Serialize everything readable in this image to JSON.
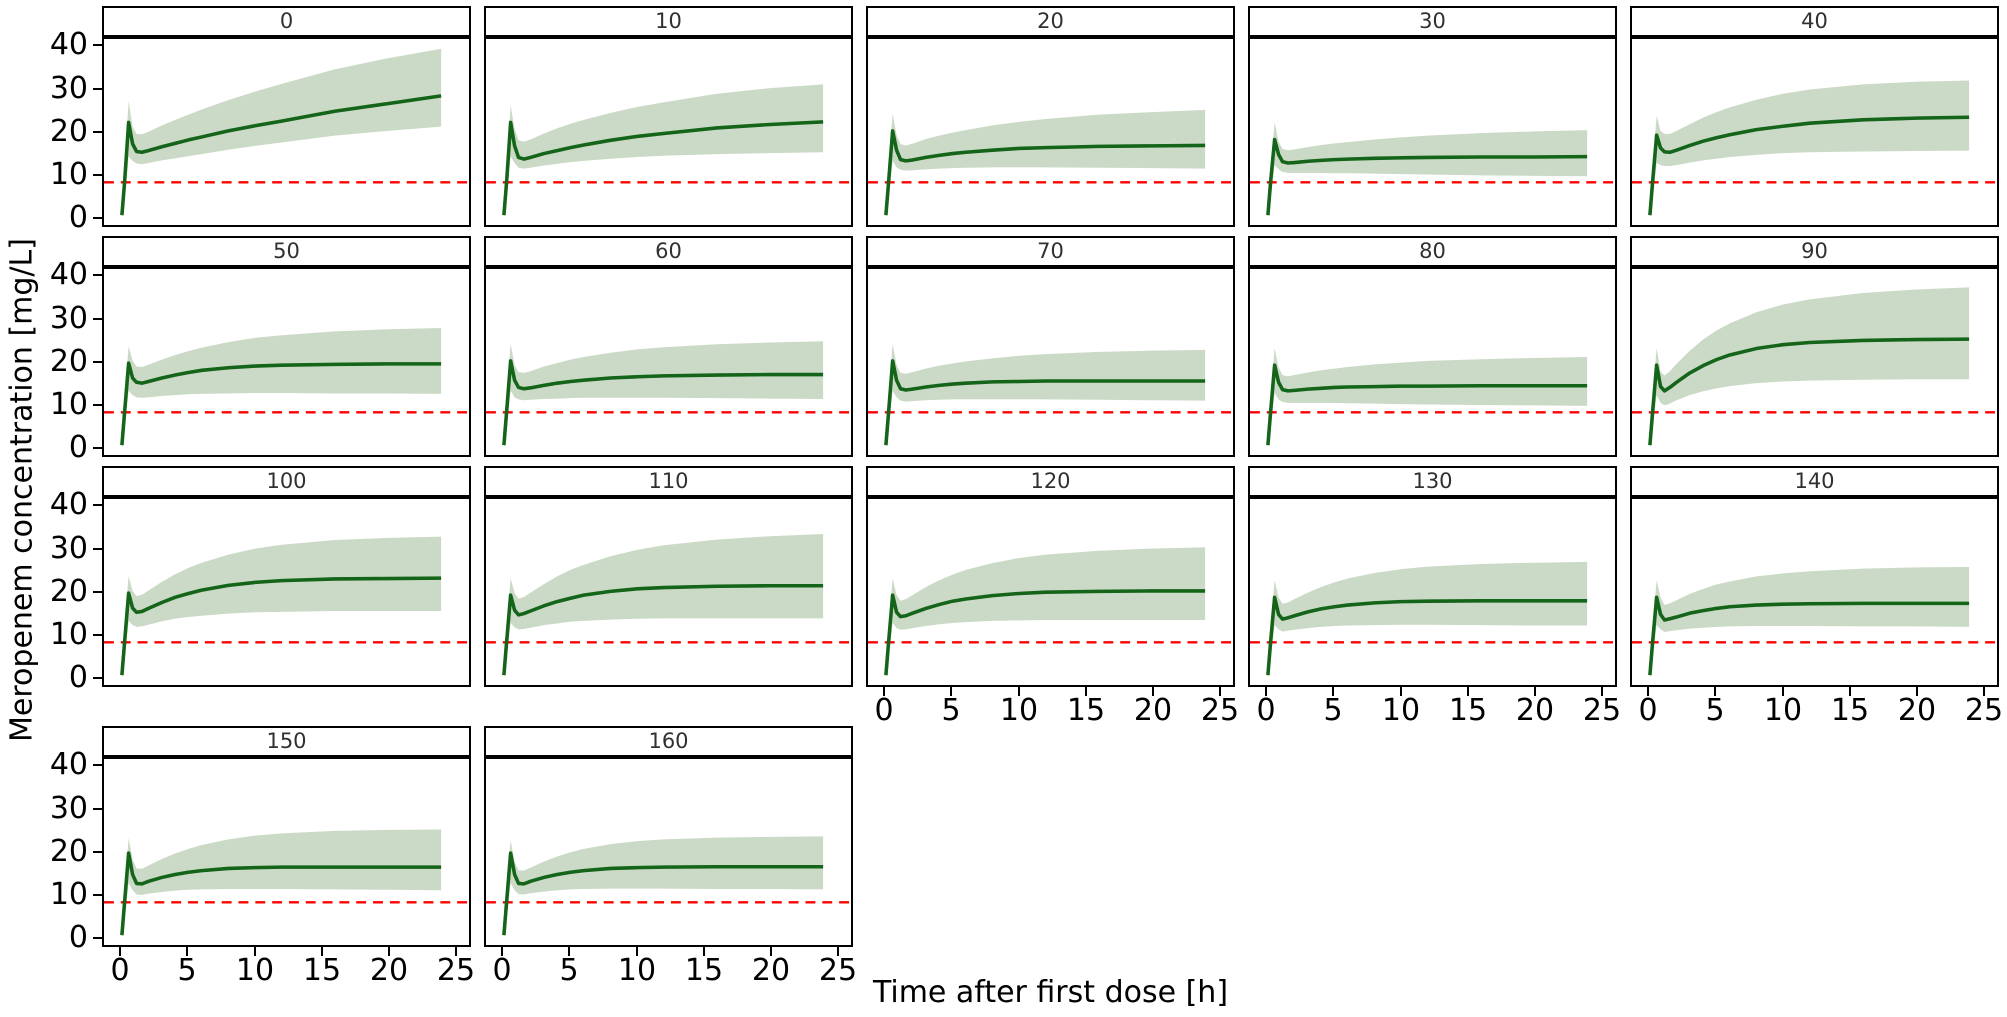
{
  "xaxis": {
    "title": "Time after first dose [h]",
    "ticks": [
      0,
      5,
      10,
      15,
      20,
      25
    ],
    "range": [
      -1.35,
      26.1
    ]
  },
  "yaxis": {
    "title": "Meropenem concentration [mg/L]",
    "ticks": [
      40,
      30,
      20,
      10,
      0
    ],
    "range": [
      -2,
      41.5
    ]
  },
  "reference_line": {
    "y": 8,
    "color": "#FF0000",
    "style": "dashed"
  },
  "colors": {
    "median_line": "#146419",
    "ribbon": "#cbdac6",
    "panel_border": "#000000",
    "strip_bg": "#ffffff",
    "strip_text": "#303030",
    "axis_text": "#000000"
  },
  "chart_data": {
    "type": "line",
    "ribbon": true,
    "facet_layout": {
      "columns": 5,
      "rows": 4
    },
    "title": "",
    "xlabel": "Time after first dose [h]",
    "ylabel": "Meropenem concentration [mg/L]",
    "xlim": [
      0,
      25
    ],
    "ylim": [
      0,
      40
    ],
    "t": [
      0,
      0.2,
      0.5,
      0.8,
      1.1,
      1.5,
      2,
      3,
      4,
      5,
      6,
      8,
      10,
      12,
      16,
      20,
      24
    ],
    "facets": [
      {
        "label": "0",
        "median": [
          0.3,
          8,
          22,
          17,
          15.2,
          15.0,
          15.4,
          16.3,
          17.1,
          17.9,
          18.6,
          20.0,
          21.2,
          22.3,
          24.6,
          26.4,
          28.2
        ],
        "lo": [
          0,
          4,
          14,
          13,
          12.4,
          12.2,
          12.5,
          13.1,
          13.6,
          14.1,
          14.6,
          15.6,
          16.5,
          17.3,
          18.9,
          20.0,
          21.0
        ],
        "hi": [
          0.8,
          12,
          27,
          21,
          19.3,
          19.2,
          19.8,
          21.3,
          22.6,
          23.8,
          25.0,
          27.2,
          29.2,
          31.0,
          34.4,
          37.0,
          39.2
        ]
      },
      {
        "label": "10",
        "median": [
          0.3,
          8,
          22,
          16.5,
          13.8,
          13.4,
          13.8,
          14.7,
          15.4,
          16.1,
          16.7,
          17.8,
          18.7,
          19.4,
          20.7,
          21.5,
          22.1
        ],
        "lo": [
          0,
          4,
          14,
          12.5,
          11.4,
          11.2,
          11.4,
          11.9,
          12.3,
          12.7,
          13.0,
          13.5,
          13.9,
          14.2,
          14.6,
          14.8,
          15.0
        ],
        "hi": [
          0.8,
          12,
          26,
          20.5,
          17.8,
          17.5,
          18.0,
          19.4,
          20.6,
          21.7,
          22.6,
          24.2,
          25.6,
          26.7,
          28.7,
          30.0,
          30.9
        ]
      },
      {
        "label": "20",
        "median": [
          0.3,
          8,
          20,
          15.5,
          13.3,
          13.0,
          13.2,
          13.8,
          14.3,
          14.7,
          15.0,
          15.5,
          15.9,
          16.1,
          16.4,
          16.5,
          16.6
        ],
        "lo": [
          0,
          4,
          13,
          11.5,
          10.9,
          10.7,
          10.8,
          11.0,
          11.2,
          11.3,
          11.4,
          11.5,
          11.5,
          11.5,
          11.4,
          11.3,
          11.2
        ],
        "hi": [
          0.8,
          12,
          24,
          19.0,
          16.9,
          16.6,
          17.0,
          18.1,
          18.9,
          19.6,
          20.2,
          21.3,
          22.1,
          22.8,
          23.8,
          24.4,
          24.9
        ]
      },
      {
        "label": "30",
        "median": [
          0.3,
          8,
          18,
          14.5,
          12.8,
          12.5,
          12.6,
          12.9,
          13.1,
          13.3,
          13.4,
          13.6,
          13.7,
          13.8,
          13.9,
          13.9,
          14.0
        ],
        "lo": [
          0,
          4,
          12,
          11.0,
          10.4,
          10.2,
          10.2,
          10.2,
          10.2,
          10.1,
          10.1,
          10.0,
          9.9,
          9.8,
          9.6,
          9.5,
          9.4
        ],
        "hi": [
          0.8,
          12,
          22,
          17.5,
          15.8,
          15.5,
          15.7,
          16.2,
          16.7,
          17.1,
          17.4,
          18.0,
          18.5,
          18.9,
          19.5,
          19.9,
          20.2
        ]
      },
      {
        "label": "40",
        "median": [
          0.3,
          8,
          19,
          16.0,
          15.1,
          15.0,
          15.5,
          16.6,
          17.6,
          18.4,
          19.1,
          20.3,
          21.1,
          21.8,
          22.6,
          23.0,
          23.2
        ],
        "lo": [
          0,
          4,
          12.5,
          12.0,
          11.8,
          11.8,
          12.0,
          12.6,
          13.1,
          13.5,
          13.9,
          14.4,
          14.8,
          15.0,
          15.2,
          15.3,
          15.4
        ],
        "hi": [
          0.8,
          12,
          23.5,
          20.0,
          19.3,
          19.3,
          20.0,
          21.6,
          23.1,
          24.4,
          25.5,
          27.3,
          28.7,
          29.7,
          30.9,
          31.5,
          31.8
        ]
      },
      {
        "label": "50",
        "median": [
          0.3,
          8,
          19.5,
          16.0,
          15.0,
          14.8,
          15.2,
          16.0,
          16.7,
          17.3,
          17.8,
          18.4,
          18.8,
          19.0,
          19.2,
          19.3,
          19.3
        ],
        "lo": [
          0,
          4,
          13,
          12.0,
          11.5,
          11.4,
          11.5,
          11.8,
          12.0,
          12.2,
          12.3,
          12.4,
          12.5,
          12.5,
          12.4,
          12.4,
          12.3
        ],
        "hi": [
          0.8,
          12,
          23.5,
          20.0,
          18.7,
          18.6,
          19.1,
          20.3,
          21.4,
          22.3,
          23.1,
          24.4,
          25.4,
          26.0,
          26.9,
          27.4,
          27.7
        ]
      },
      {
        "label": "60",
        "median": [
          0.3,
          8,
          20,
          15.5,
          13.8,
          13.5,
          13.7,
          14.3,
          14.8,
          15.2,
          15.5,
          16.0,
          16.3,
          16.5,
          16.7,
          16.8,
          16.8
        ],
        "lo": [
          0,
          4,
          13,
          11.5,
          11.0,
          10.8,
          10.9,
          11.1,
          11.2,
          11.3,
          11.4,
          11.4,
          11.4,
          11.4,
          11.3,
          11.2,
          11.1
        ],
        "hi": [
          0.8,
          12,
          24,
          19.0,
          17.4,
          17.2,
          17.6,
          18.7,
          19.5,
          20.3,
          20.9,
          21.9,
          22.7,
          23.2,
          23.9,
          24.3,
          24.6
        ]
      },
      {
        "label": "70",
        "median": [
          0.3,
          8,
          20,
          15.5,
          13.5,
          13.2,
          13.4,
          13.9,
          14.3,
          14.6,
          14.8,
          15.1,
          15.2,
          15.3,
          15.3,
          15.3,
          15.3
        ],
        "lo": [
          0,
          4,
          13,
          11.5,
          10.7,
          10.5,
          10.6,
          10.8,
          10.9,
          11.0,
          11.0,
          11.0,
          11.0,
          11.0,
          10.9,
          10.8,
          10.7
        ],
        "hi": [
          0.8,
          12,
          24,
          19.0,
          17.2,
          17.0,
          17.4,
          18.2,
          18.9,
          19.4,
          19.9,
          20.6,
          21.2,
          21.6,
          22.1,
          22.4,
          22.6
        ]
      },
      {
        "label": "80",
        "median": [
          0.3,
          8,
          19,
          15.0,
          13.3,
          13.0,
          13.1,
          13.4,
          13.6,
          13.8,
          13.9,
          14.0,
          14.1,
          14.1,
          14.2,
          14.2,
          14.2
        ],
        "lo": [
          0,
          4,
          12.5,
          11.0,
          10.4,
          10.2,
          10.2,
          10.2,
          10.2,
          10.2,
          10.1,
          10.0,
          9.9,
          9.8,
          9.7,
          9.6,
          9.5
        ],
        "hi": [
          0.8,
          12,
          23,
          18.5,
          16.7,
          16.4,
          16.7,
          17.3,
          17.8,
          18.2,
          18.6,
          19.2,
          19.6,
          20.0,
          20.4,
          20.7,
          20.9
        ]
      },
      {
        "label": "90",
        "median": [
          0.3,
          8,
          19,
          14.0,
          13.0,
          13.8,
          15.0,
          17.2,
          18.9,
          20.3,
          21.4,
          22.9,
          23.8,
          24.3,
          24.8,
          25.0,
          25.1
        ],
        "lo": [
          0,
          4,
          12,
          10.2,
          9.6,
          10.0,
          10.8,
          12.0,
          12.9,
          13.6,
          14.1,
          14.8,
          15.2,
          15.4,
          15.6,
          15.7,
          15.7
        ],
        "hi": [
          0.8,
          12,
          23,
          17.5,
          16.6,
          17.6,
          19.3,
          22.4,
          25.0,
          27.1,
          28.8,
          31.4,
          33.2,
          34.4,
          35.9,
          36.7,
          37.2
        ]
      },
      {
        "label": "100",
        "median": [
          0.3,
          8,
          19.5,
          16.0,
          15.0,
          15.2,
          15.9,
          17.3,
          18.5,
          19.4,
          20.2,
          21.3,
          22.0,
          22.4,
          22.8,
          22.9,
          23.0
        ],
        "lo": [
          0,
          4,
          13,
          12.0,
          11.6,
          11.7,
          12.1,
          12.9,
          13.5,
          13.9,
          14.2,
          14.7,
          15.0,
          15.1,
          15.3,
          15.3,
          15.3
        ],
        "hi": [
          0.8,
          12,
          23.5,
          20.0,
          18.8,
          19.1,
          20.1,
          22.1,
          23.9,
          25.4,
          26.6,
          28.5,
          29.9,
          30.8,
          31.9,
          32.4,
          32.7
        ]
      },
      {
        "label": "110",
        "median": [
          0.3,
          8,
          19,
          15.5,
          14.4,
          14.7,
          15.3,
          16.5,
          17.5,
          18.3,
          19.0,
          19.9,
          20.5,
          20.8,
          21.1,
          21.2,
          21.2
        ],
        "lo": [
          0,
          4,
          12.5,
          11.5,
          11.0,
          11.1,
          11.4,
          12.0,
          12.4,
          12.8,
          13.0,
          13.3,
          13.5,
          13.6,
          13.6,
          13.6,
          13.6
        ],
        "hi": [
          0.8,
          12,
          23,
          19.5,
          18.2,
          18.6,
          19.6,
          21.6,
          23.4,
          24.9,
          26.1,
          28.1,
          29.6,
          30.7,
          32.0,
          32.8,
          33.3
        ]
      },
      {
        "label": "120",
        "median": [
          0.3,
          8,
          19,
          15.0,
          14.0,
          14.2,
          14.8,
          15.9,
          16.8,
          17.6,
          18.1,
          18.9,
          19.4,
          19.7,
          19.9,
          20.0,
          20.0
        ],
        "lo": [
          0,
          4,
          12.5,
          11.3,
          10.9,
          11.0,
          11.3,
          11.8,
          12.2,
          12.5,
          12.7,
          13.0,
          13.1,
          13.2,
          13.2,
          13.2,
          13.2
        ],
        "hi": [
          0.8,
          12,
          23,
          19.0,
          17.7,
          18.1,
          19.0,
          20.9,
          22.5,
          23.8,
          24.9,
          26.5,
          27.7,
          28.5,
          29.4,
          29.9,
          30.2
        ]
      },
      {
        "label": "130",
        "median": [
          0.3,
          8,
          18.5,
          14.5,
          13.4,
          13.7,
          14.2,
          15.1,
          15.8,
          16.3,
          16.7,
          17.2,
          17.5,
          17.6,
          17.7,
          17.7,
          17.7
        ],
        "lo": [
          0,
          4,
          12,
          11.0,
          10.5,
          10.7,
          10.9,
          11.3,
          11.6,
          11.8,
          11.9,
          12.0,
          12.1,
          12.1,
          12.0,
          11.9,
          11.9
        ],
        "hi": [
          0.8,
          12,
          22.5,
          18.5,
          17.0,
          17.3,
          18.1,
          19.6,
          20.9,
          22.0,
          22.9,
          24.2,
          25.1,
          25.7,
          26.3,
          26.6,
          26.8
        ]
      },
      {
        "label": "140",
        "median": [
          0.3,
          8,
          18.5,
          14.5,
          13.2,
          13.5,
          13.9,
          14.8,
          15.4,
          15.9,
          16.3,
          16.7,
          16.9,
          17.0,
          17.1,
          17.1,
          17.1
        ],
        "lo": [
          0,
          4,
          12,
          11.0,
          10.4,
          10.6,
          10.8,
          11.2,
          11.4,
          11.6,
          11.7,
          11.8,
          11.8,
          11.8,
          11.7,
          11.7,
          11.6
        ],
        "hi": [
          0.8,
          12,
          22.5,
          18.5,
          16.7,
          17.1,
          17.8,
          19.3,
          20.5,
          21.5,
          22.2,
          23.4,
          24.1,
          24.6,
          25.2,
          25.5,
          25.6
        ]
      },
      {
        "label": "150",
        "median": [
          0.3,
          8,
          19.5,
          14.5,
          12.4,
          12.3,
          12.9,
          13.8,
          14.5,
          15.0,
          15.4,
          15.9,
          16.1,
          16.2,
          16.2,
          16.2,
          16.2
        ],
        "lo": [
          0,
          4,
          12.5,
          10.8,
          9.8,
          9.7,
          10.0,
          10.4,
          10.7,
          10.9,
          11.0,
          11.1,
          11.1,
          11.1,
          11.0,
          10.9,
          10.8
        ],
        "hi": [
          0.8,
          12,
          23,
          18.0,
          15.9,
          15.8,
          16.6,
          18.1,
          19.4,
          20.5,
          21.4,
          22.7,
          23.6,
          24.1,
          24.7,
          24.9,
          25.0
        ]
      },
      {
        "label": "160",
        "median": [
          0.3,
          8,
          19.5,
          14.5,
          12.4,
          12.3,
          12.9,
          13.8,
          14.5,
          15.0,
          15.4,
          15.9,
          16.1,
          16.2,
          16.3,
          16.3,
          16.3
        ],
        "lo": [
          0,
          4,
          12.5,
          10.8,
          9.9,
          9.8,
          10.1,
          10.5,
          10.8,
          11.0,
          11.1,
          11.2,
          11.2,
          11.2,
          11.1,
          11.1,
          11.0
        ],
        "hi": [
          0.8,
          12,
          22.5,
          17.5,
          15.5,
          15.4,
          16.1,
          17.5,
          18.7,
          19.7,
          20.5,
          21.6,
          22.3,
          22.7,
          23.1,
          23.3,
          23.4
        ]
      }
    ]
  }
}
